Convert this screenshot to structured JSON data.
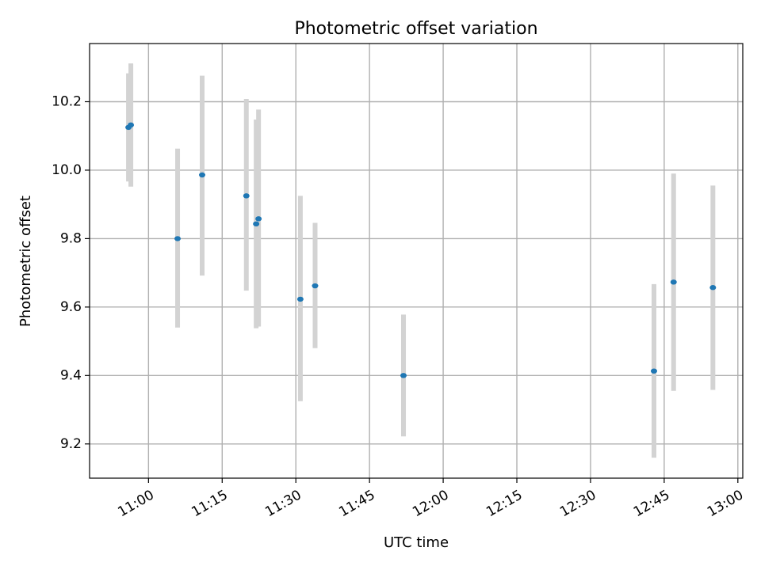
{
  "chart_data": {
    "type": "scatter",
    "title": "Photometric offset variation",
    "xlabel": "UTC time",
    "ylabel": "Photometric offset",
    "x_ticks": [
      "11:00",
      "11:15",
      "11:30",
      "11:45",
      "12:00",
      "12:15",
      "12:30",
      "12:45",
      "13:00"
    ],
    "y_ticks": [
      "9.2",
      "9.4",
      "9.6",
      "9.8",
      "10.0",
      "10.2"
    ],
    "xlim": [
      "10:48",
      "13:01"
    ],
    "ylim": [
      9.1,
      10.37
    ],
    "grid": true,
    "legend": "none",
    "series": [
      {
        "points": [
          {
            "time": "10:56",
            "y": 10.125,
            "yerr_low": 9.967,
            "yerr_high": 10.283
          },
          {
            "time": "10:56",
            "y": 10.132,
            "yerr_low": 9.952,
            "yerr_high": 10.312
          },
          {
            "time": "11:06",
            "y": 9.8,
            "yerr_low": 9.54,
            "yerr_high": 10.063
          },
          {
            "time": "11:11",
            "y": 9.986,
            "yerr_low": 9.692,
            "yerr_high": 10.276
          },
          {
            "time": "11:20",
            "y": 9.925,
            "yerr_low": 9.648,
            "yerr_high": 10.208
          },
          {
            "time": "11:22",
            "y": 9.843,
            "yerr_low": 9.538,
            "yerr_high": 10.148
          },
          {
            "time": "11:22",
            "y": 9.858,
            "yerr_low": 9.543,
            "yerr_high": 10.177
          },
          {
            "time": "11:31",
            "y": 9.623,
            "yerr_low": 9.325,
            "yerr_high": 9.925
          },
          {
            "time": "11:34",
            "y": 9.662,
            "yerr_low": 9.48,
            "yerr_high": 9.846
          },
          {
            "time": "11:52",
            "y": 9.4,
            "yerr_low": 9.222,
            "yerr_high": 9.578
          },
          {
            "time": "12:43",
            "y": 9.413,
            "yerr_low": 9.16,
            "yerr_high": 9.667
          },
          {
            "time": "12:47",
            "y": 9.673,
            "yerr_low": 9.355,
            "yerr_high": 9.99
          },
          {
            "time": "12:55",
            "y": 9.657,
            "yerr_low": 9.358,
            "yerr_high": 9.955
          }
        ]
      }
    ],
    "colors": {
      "marker": "#1f77b4",
      "errorbar": "#d3d3d3",
      "grid": "#b0b0b0",
      "axes": "#000000"
    }
  }
}
